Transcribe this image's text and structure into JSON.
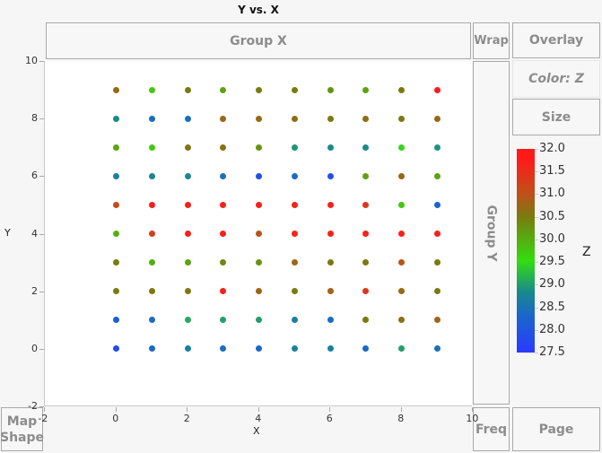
{
  "window": {
    "title": "Y vs. X"
  },
  "zones": {
    "group_x": "Group X",
    "group_y": "Group Y",
    "wrap": "Wrap",
    "overlay": "Overlay",
    "color": "Color: Z",
    "size": "Size",
    "map_shape_line1": "Map",
    "map_shape_line2": "Shape",
    "freq": "Freq",
    "page": "Page"
  },
  "legend": {
    "title": "Z",
    "labels": [
      "32.0",
      "31.5",
      "31.0",
      "30.5",
      "30.0",
      "29.5",
      "29.0",
      "28.5",
      "28.0",
      "27.5"
    ]
  },
  "axes": {
    "x_label": "X",
    "y_label": "Y",
    "x_ticks": [
      "-2",
      "0",
      "2",
      "4",
      "6",
      "8",
      "10"
    ],
    "y_ticks": [
      "10",
      "8",
      "6",
      "4",
      "2",
      "0",
      "-2"
    ]
  },
  "chart_data": {
    "type": "scatter",
    "title": "Y vs. X",
    "xlabel": "X",
    "ylabel": "Y",
    "xlim": [
      -2,
      10
    ],
    "ylim": [
      -2,
      10
    ],
    "grid": false,
    "legend_position": "right",
    "color_variable": "Z",
    "color_range": [
      27.5,
      32.0
    ],
    "color_scale": [
      "#2a3aff",
      "#1a66cc",
      "#1a8a8a",
      "#33dd11",
      "#7a7a10",
      "#c0501a",
      "#ff1a1a"
    ],
    "x": [
      0,
      1,
      2,
      3,
      4,
      5,
      6,
      7,
      8,
      9
    ],
    "y": [
      9,
      8,
      7,
      6,
      5,
      4,
      3,
      2,
      1,
      0
    ],
    "z_grid": [
      [
        30.8,
        29.9,
        30.5,
        30.2,
        30.5,
        30.5,
        30.3,
        30.2,
        30.5,
        32.0
      ],
      [
        29.0,
        28.4,
        28.4,
        30.8,
        30.8,
        30.7,
        30.5,
        30.7,
        30.5,
        30.8
      ],
      [
        30.2,
        29.9,
        30.6,
        30.7,
        30.3,
        29.1,
        29.0,
        29.0,
        29.7,
        29.1
      ],
      [
        28.8,
        28.9,
        28.9,
        28.5,
        27.9,
        28.4,
        27.9,
        30.2,
        30.8,
        30.2
      ],
      [
        31.3,
        31.9,
        31.9,
        31.9,
        31.9,
        31.9,
        31.9,
        31.6,
        29.9,
        28.2
      ],
      [
        30.1,
        31.5,
        31.9,
        31.9,
        31.2,
        31.9,
        31.9,
        31.9,
        31.9,
        31.9
      ],
      [
        30.5,
        30.1,
        30.2,
        30.4,
        30.3,
        30.9,
        30.5,
        30.5,
        31.2,
        30.5
      ],
      [
        30.5,
        30.6,
        30.6,
        31.9,
        30.9,
        30.5,
        30.9,
        31.6,
        30.8,
        30.5
      ],
      [
        28.1,
        28.4,
        29.3,
        29.2,
        29.2,
        28.8,
        28.4,
        30.5,
        30.7,
        30.9
      ],
      [
        27.8,
        28.3,
        28.8,
        28.4,
        28.3,
        28.8,
        28.8,
        28.3,
        29.2,
        28.5
      ]
    ]
  }
}
